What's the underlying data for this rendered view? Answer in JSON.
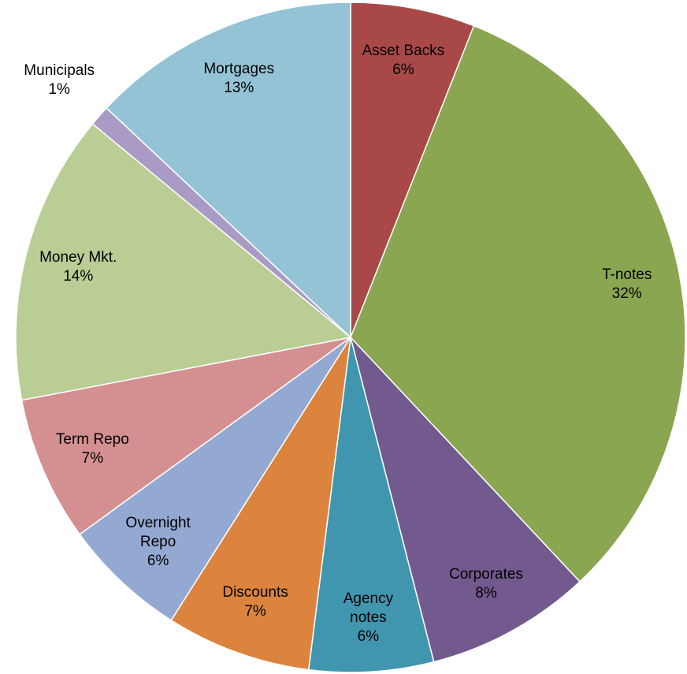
{
  "chart_data": {
    "type": "pie",
    "categories": [
      "Asset Backs",
      "T-notes",
      "Corporates",
      "Agency notes",
      "Discounts",
      "Overnight Repo",
      "Term Repo",
      "Money Mkt.",
      "Municipals",
      "Mortgages"
    ],
    "values": [
      6,
      32,
      8,
      6,
      7,
      6,
      7,
      14,
      1,
      13
    ],
    "value_labels": [
      "6%",
      "32%",
      "8%",
      "6%",
      "7%",
      "6%",
      "7%",
      "14%",
      "1%",
      "13%"
    ],
    "colors": [
      "#a84848",
      "#8aa650",
      "#725a8f",
      "#4096ae",
      "#dc843e",
      "#94a9d2",
      "#d49090",
      "#b9cd95",
      "#a99bc5",
      "#93c3d5"
    ]
  }
}
